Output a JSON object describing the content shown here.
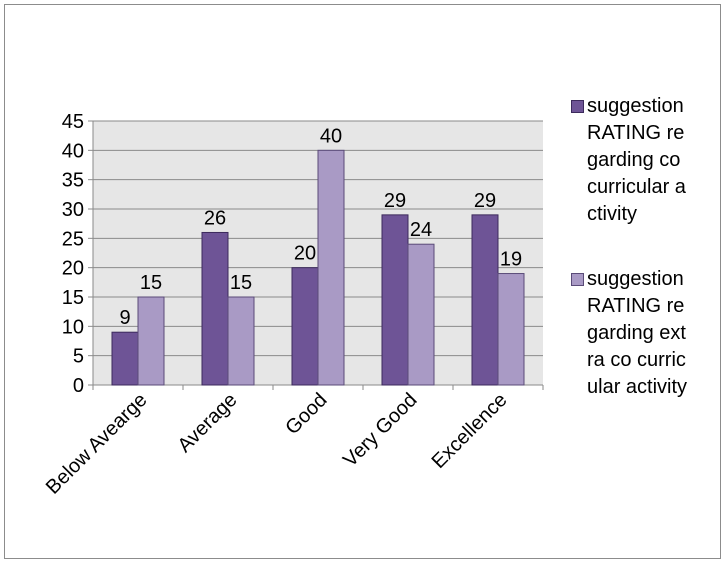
{
  "chart_data": {
    "type": "bar",
    "title": "",
    "xlabel": "",
    "ylabel": "",
    "categories": [
      "Below Avearge",
      "Average",
      "Good",
      "Very Good",
      "Excellence"
    ],
    "series": [
      {
        "name": "suggestion RATING regarding co curricular activity",
        "values": [
          9,
          26,
          20,
          29,
          29
        ],
        "color": "#6e5496",
        "border": "#3c2a5c"
      },
      {
        "name": "suggestion RATING regarding extra co curricular activity",
        "values": [
          15,
          15,
          40,
          24,
          19
        ],
        "color": "#a99ac5",
        "border": "#5a4b78"
      }
    ],
    "ylim": [
      0,
      45
    ],
    "yticks": [
      0,
      5,
      10,
      15,
      20,
      25,
      30,
      35,
      40,
      45
    ],
    "grid": true,
    "legend": "right",
    "data_labels": true,
    "plot_background": "#e6e6e6"
  }
}
